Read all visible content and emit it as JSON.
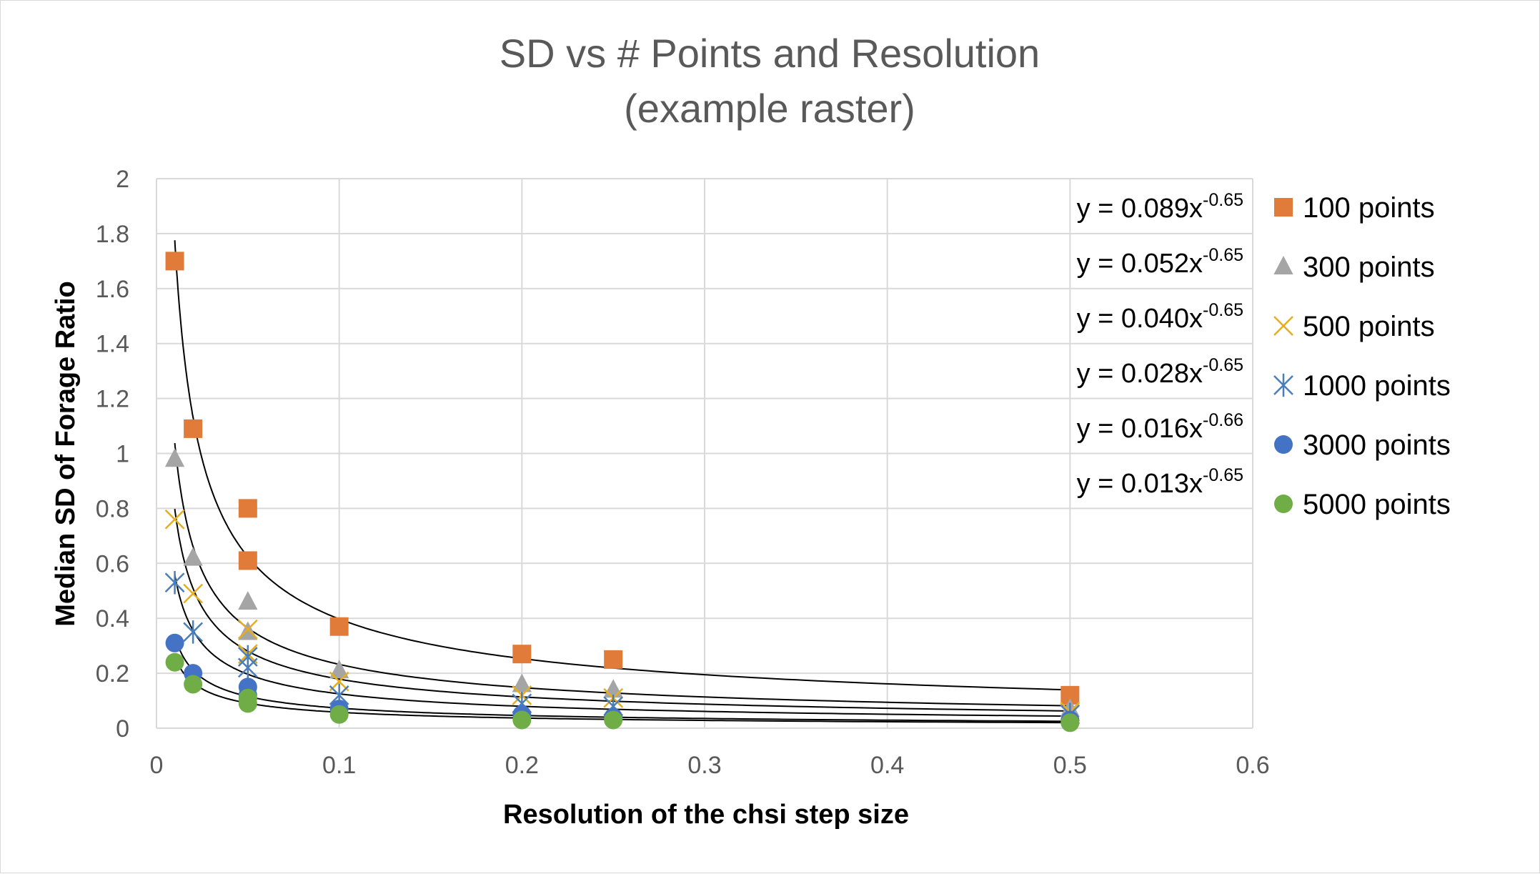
{
  "chart_data": {
    "type": "scatter",
    "title": [
      "SD vs # Points and Resolution",
      "(example raster)"
    ],
    "xlabel": "Resolution of the chsi step size",
    "ylabel": "Median SD of  Forage Ratio",
    "xlim": [
      0,
      0.6
    ],
    "ylim": [
      0,
      2
    ],
    "xticks": [
      "0",
      "0.1",
      "0.2",
      "0.3",
      "0.4",
      "0.5",
      "0.6"
    ],
    "yticks": [
      "0",
      "0.2",
      "0.4",
      "0.6",
      "0.8",
      "1",
      "1.2",
      "1.4",
      "1.6",
      "1.8",
      "2"
    ],
    "grid": true,
    "legend_position": "right",
    "series": [
      {
        "name": "100 points",
        "marker": "square",
        "color": "#E07B39",
        "x": [
          0.01,
          0.02,
          0.05,
          0.05,
          0.1,
          0.2,
          0.25,
          0.5
        ],
        "y": [
          1.7,
          1.09,
          0.8,
          0.61,
          0.37,
          0.27,
          0.25,
          0.12
        ],
        "trendline": {
          "a": 0.089,
          "b": -0.65,
          "label_pre": "y  = 0.089x",
          "label_exp": "-0.65"
        }
      },
      {
        "name": "300 points",
        "marker": "triangle",
        "color": "#A5A5A5",
        "x": [
          0.01,
          0.02,
          0.05,
          0.05,
          0.1,
          0.2,
          0.25,
          0.5
        ],
        "y": [
          0.98,
          0.62,
          0.46,
          0.35,
          0.21,
          0.16,
          0.14,
          0.07
        ],
        "trendline": {
          "a": 0.052,
          "b": -0.65,
          "label_pre": "y  = 0.052x",
          "label_exp": "-0.65"
        }
      },
      {
        "name": "500 points",
        "marker": "x",
        "color": "#E6AE1E",
        "x": [
          0.01,
          0.02,
          0.05,
          0.05,
          0.1,
          0.2,
          0.25,
          0.5
        ],
        "y": [
          0.76,
          0.49,
          0.36,
          0.27,
          0.17,
          0.12,
          0.11,
          0.06
        ],
        "trendline": {
          "a": 0.04,
          "b": -0.65,
          "label_pre": "y  = 0.040x",
          "label_exp": "-0.65"
        }
      },
      {
        "name": "1000 points",
        "marker": "asterisk",
        "color": "#4A7EBB",
        "x": [
          0.01,
          0.02,
          0.05,
          0.05,
          0.1,
          0.2,
          0.25,
          0.5
        ],
        "y": [
          0.53,
          0.35,
          0.26,
          0.22,
          0.12,
          0.09,
          0.08,
          0.05
        ],
        "trendline": {
          "a": 0.028,
          "b": -0.65,
          "label_pre": "y  = 0.028x",
          "label_exp": "-0.65"
        }
      },
      {
        "name": "3000 points",
        "marker": "circle",
        "color": "#4472C4",
        "x": [
          0.01,
          0.02,
          0.05,
          0.05,
          0.1,
          0.2,
          0.25,
          0.5
        ],
        "y": [
          0.31,
          0.2,
          0.15,
          0.12,
          0.07,
          0.05,
          0.04,
          0.03
        ],
        "trendline": {
          "a": 0.016,
          "b": -0.66,
          "label_pre": "y  = 0.016x",
          "label_exp": "-0.66"
        }
      },
      {
        "name": "5000 points",
        "marker": "circle",
        "color": "#70AD47",
        "x": [
          0.01,
          0.02,
          0.05,
          0.05,
          0.1,
          0.2,
          0.25,
          0.5
        ],
        "y": [
          0.24,
          0.16,
          0.11,
          0.09,
          0.05,
          0.03,
          0.03,
          0.02
        ],
        "trendline": {
          "a": 0.013,
          "b": -0.65,
          "label_pre": "y  = 0.013x",
          "label_exp": "-0.65"
        }
      }
    ]
  }
}
